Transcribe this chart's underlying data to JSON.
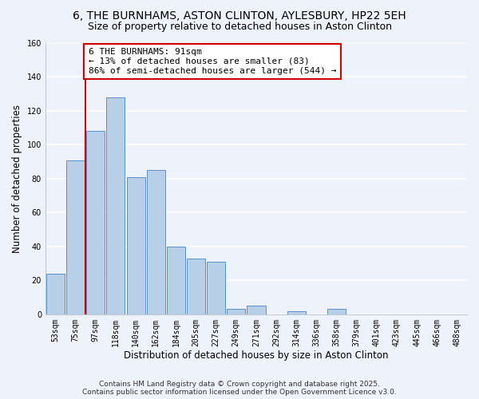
{
  "title": "6, THE BURNHAMS, ASTON CLINTON, AYLESBURY, HP22 5EH",
  "subtitle": "Size of property relative to detached houses in Aston Clinton",
  "xlabel": "Distribution of detached houses by size in Aston Clinton",
  "ylabel": "Number of detached properties",
  "bar_labels": [
    "53sqm",
    "75sqm",
    "97sqm",
    "118sqm",
    "140sqm",
    "162sqm",
    "184sqm",
    "205sqm",
    "227sqm",
    "249sqm",
    "271sqm",
    "292sqm",
    "314sqm",
    "336sqm",
    "358sqm",
    "379sqm",
    "401sqm",
    "423sqm",
    "445sqm",
    "466sqm",
    "488sqm"
  ],
  "bar_values": [
    24,
    91,
    108,
    128,
    81,
    85,
    40,
    33,
    31,
    3,
    5,
    0,
    2,
    0,
    3,
    0,
    0,
    0,
    0,
    0,
    0
  ],
  "bar_color": "#b8cfe8",
  "bar_edge_color": "#5b8fc9",
  "vline_color": "#cc0000",
  "annotation_line1": "6 THE BURNHAMS: 91sqm",
  "annotation_line2": "← 13% of detached houses are smaller (83)",
  "annotation_line3": "86% of semi-detached houses are larger (544) →",
  "annotation_box_edge": "#cc0000",
  "ylim": [
    0,
    160
  ],
  "yticks": [
    0,
    20,
    40,
    60,
    80,
    100,
    120,
    140,
    160
  ],
  "footer1": "Contains HM Land Registry data © Crown copyright and database right 2025.",
  "footer2": "Contains public sector information licensed under the Open Government Licence v3.0.",
  "bg_color": "#eef2fa",
  "grid_color": "#ffffff",
  "title_fontsize": 10,
  "subtitle_fontsize": 9,
  "axis_label_fontsize": 8.5,
  "tick_fontsize": 7,
  "annotation_fontsize": 8,
  "footer_fontsize": 6.5
}
